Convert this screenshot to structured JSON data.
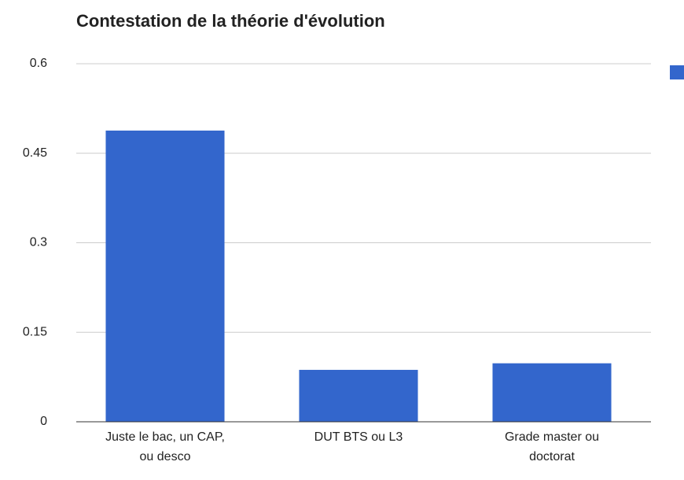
{
  "chart_data": {
    "type": "bar",
    "title": "Contestation de la théorie d'évolution",
    "categories": [
      "Juste le bac, un CAP, ou desco",
      "DUT BTS ou L3",
      "Grade master ou doctorat"
    ],
    "values": [
      0.488,
      0.087,
      0.098
    ],
    "color": "#3366cc",
    "ylim": [
      0,
      0.6
    ],
    "yticks": [
      0,
      0.15,
      0.3,
      0.45,
      0.6
    ],
    "grid": true
  }
}
